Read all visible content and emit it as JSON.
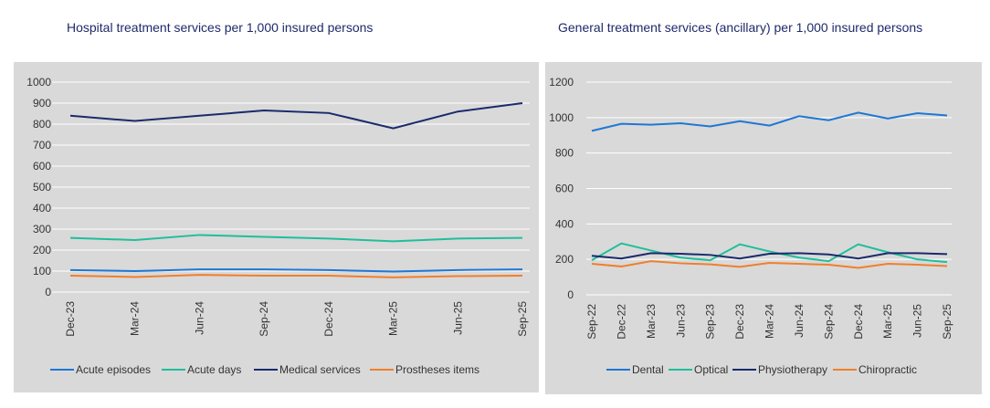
{
  "chart_data": [
    {
      "type": "line",
      "title": "Hospital treatment services per 1,000 insured persons",
      "categories": [
        "Dec-23",
        "Mar-24",
        "Jun-24",
        "Sep-24",
        "Dec-24",
        "Mar-25",
        "Jun-25",
        "Sep-25"
      ],
      "ylim": [
        0,
        1000
      ],
      "yticks": [
        0,
        100,
        200,
        300,
        400,
        500,
        600,
        700,
        800,
        900,
        1000
      ],
      "grid": true,
      "legend": "bottom",
      "series": [
        {
          "name": "Acute episodes",
          "color": "#1f77d4",
          "values": [
            105,
            100,
            108,
            108,
            105,
            98,
            105,
            108
          ]
        },
        {
          "name": "Acute days",
          "color": "#1fbf9a",
          "values": [
            258,
            248,
            272,
            263,
            255,
            242,
            255,
            258
          ]
        },
        {
          "name": "Medical services",
          "color": "#1a2a6c",
          "values": [
            840,
            815,
            840,
            865,
            853,
            780,
            860,
            900
          ]
        },
        {
          "name": "Prostheses items",
          "color": "#f07f2d",
          "values": [
            78,
            72,
            82,
            78,
            78,
            70,
            76,
            78
          ]
        }
      ]
    },
    {
      "type": "line",
      "title": "General treatment services (ancillary) per 1,000 insured persons",
      "categories": [
        "Sep-22",
        "Dec-22",
        "Mar-23",
        "Jun-23",
        "Sep-23",
        "Dec-23",
        "Mar-24",
        "Jun-24",
        "Sep-24",
        "Dec-24",
        "Mar-25",
        "Jun-25",
        "Sep-25"
      ],
      "ylim": [
        0,
        1200
      ],
      "yticks": [
        0,
        200,
        400,
        600,
        800,
        1000,
        1200
      ],
      "grid": true,
      "legend": "bottom",
      "series": [
        {
          "name": "Dental",
          "color": "#1f77d4",
          "values": [
            925,
            965,
            960,
            968,
            950,
            980,
            955,
            1008,
            985,
            1028,
            995,
            1025,
            1012
          ]
        },
        {
          "name": "Optical",
          "color": "#1fbf9a",
          "values": [
            195,
            290,
            250,
            210,
            195,
            285,
            245,
            210,
            190,
            285,
            240,
            200,
            185
          ]
        },
        {
          "name": "Physiotherapy",
          "color": "#1a2a6c",
          "values": [
            220,
            205,
            235,
            232,
            225,
            205,
            232,
            235,
            228,
            205,
            235,
            235,
            230
          ]
        },
        {
          "name": "Chiropractic",
          "color": "#f07f2d",
          "values": [
            175,
            160,
            190,
            178,
            172,
            158,
            180,
            175,
            170,
            152,
            175,
            170,
            162
          ]
        }
      ]
    }
  ]
}
